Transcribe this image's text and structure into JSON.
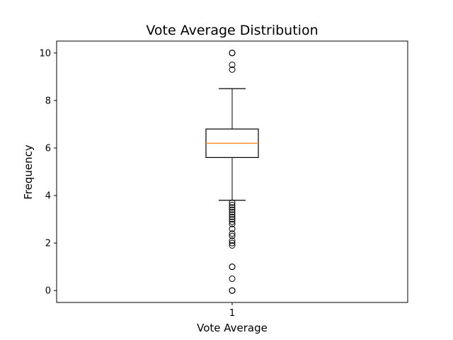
{
  "chart_data": {
    "type": "box",
    "title": "Vote Average Distribution",
    "xlabel": "Vote Average",
    "ylabel": "Frequency",
    "x_tick_labels": [
      "1"
    ],
    "y_ticks": [
      0,
      2,
      4,
      6,
      8,
      10
    ],
    "ylim": [
      -0.5,
      10.5
    ],
    "grid": false,
    "box": {
      "category": "1",
      "whisker_low": 3.8,
      "q1": 5.6,
      "median": 6.2,
      "q3": 6.8,
      "whisker_high": 8.5,
      "outliers": [
        0,
        0,
        0,
        0.5,
        1.0,
        1.0,
        1.9,
        2.0,
        2.1,
        2.3,
        2.4,
        2.6,
        2.8,
        2.9,
        3.0,
        3.1,
        3.2,
        3.3,
        3.4,
        3.5,
        3.6,
        3.7,
        9.3,
        9.5,
        10,
        10,
        10
      ]
    },
    "colors": {
      "box": "#000000",
      "median": "#ff7f0e",
      "outlier": "#000000"
    }
  }
}
